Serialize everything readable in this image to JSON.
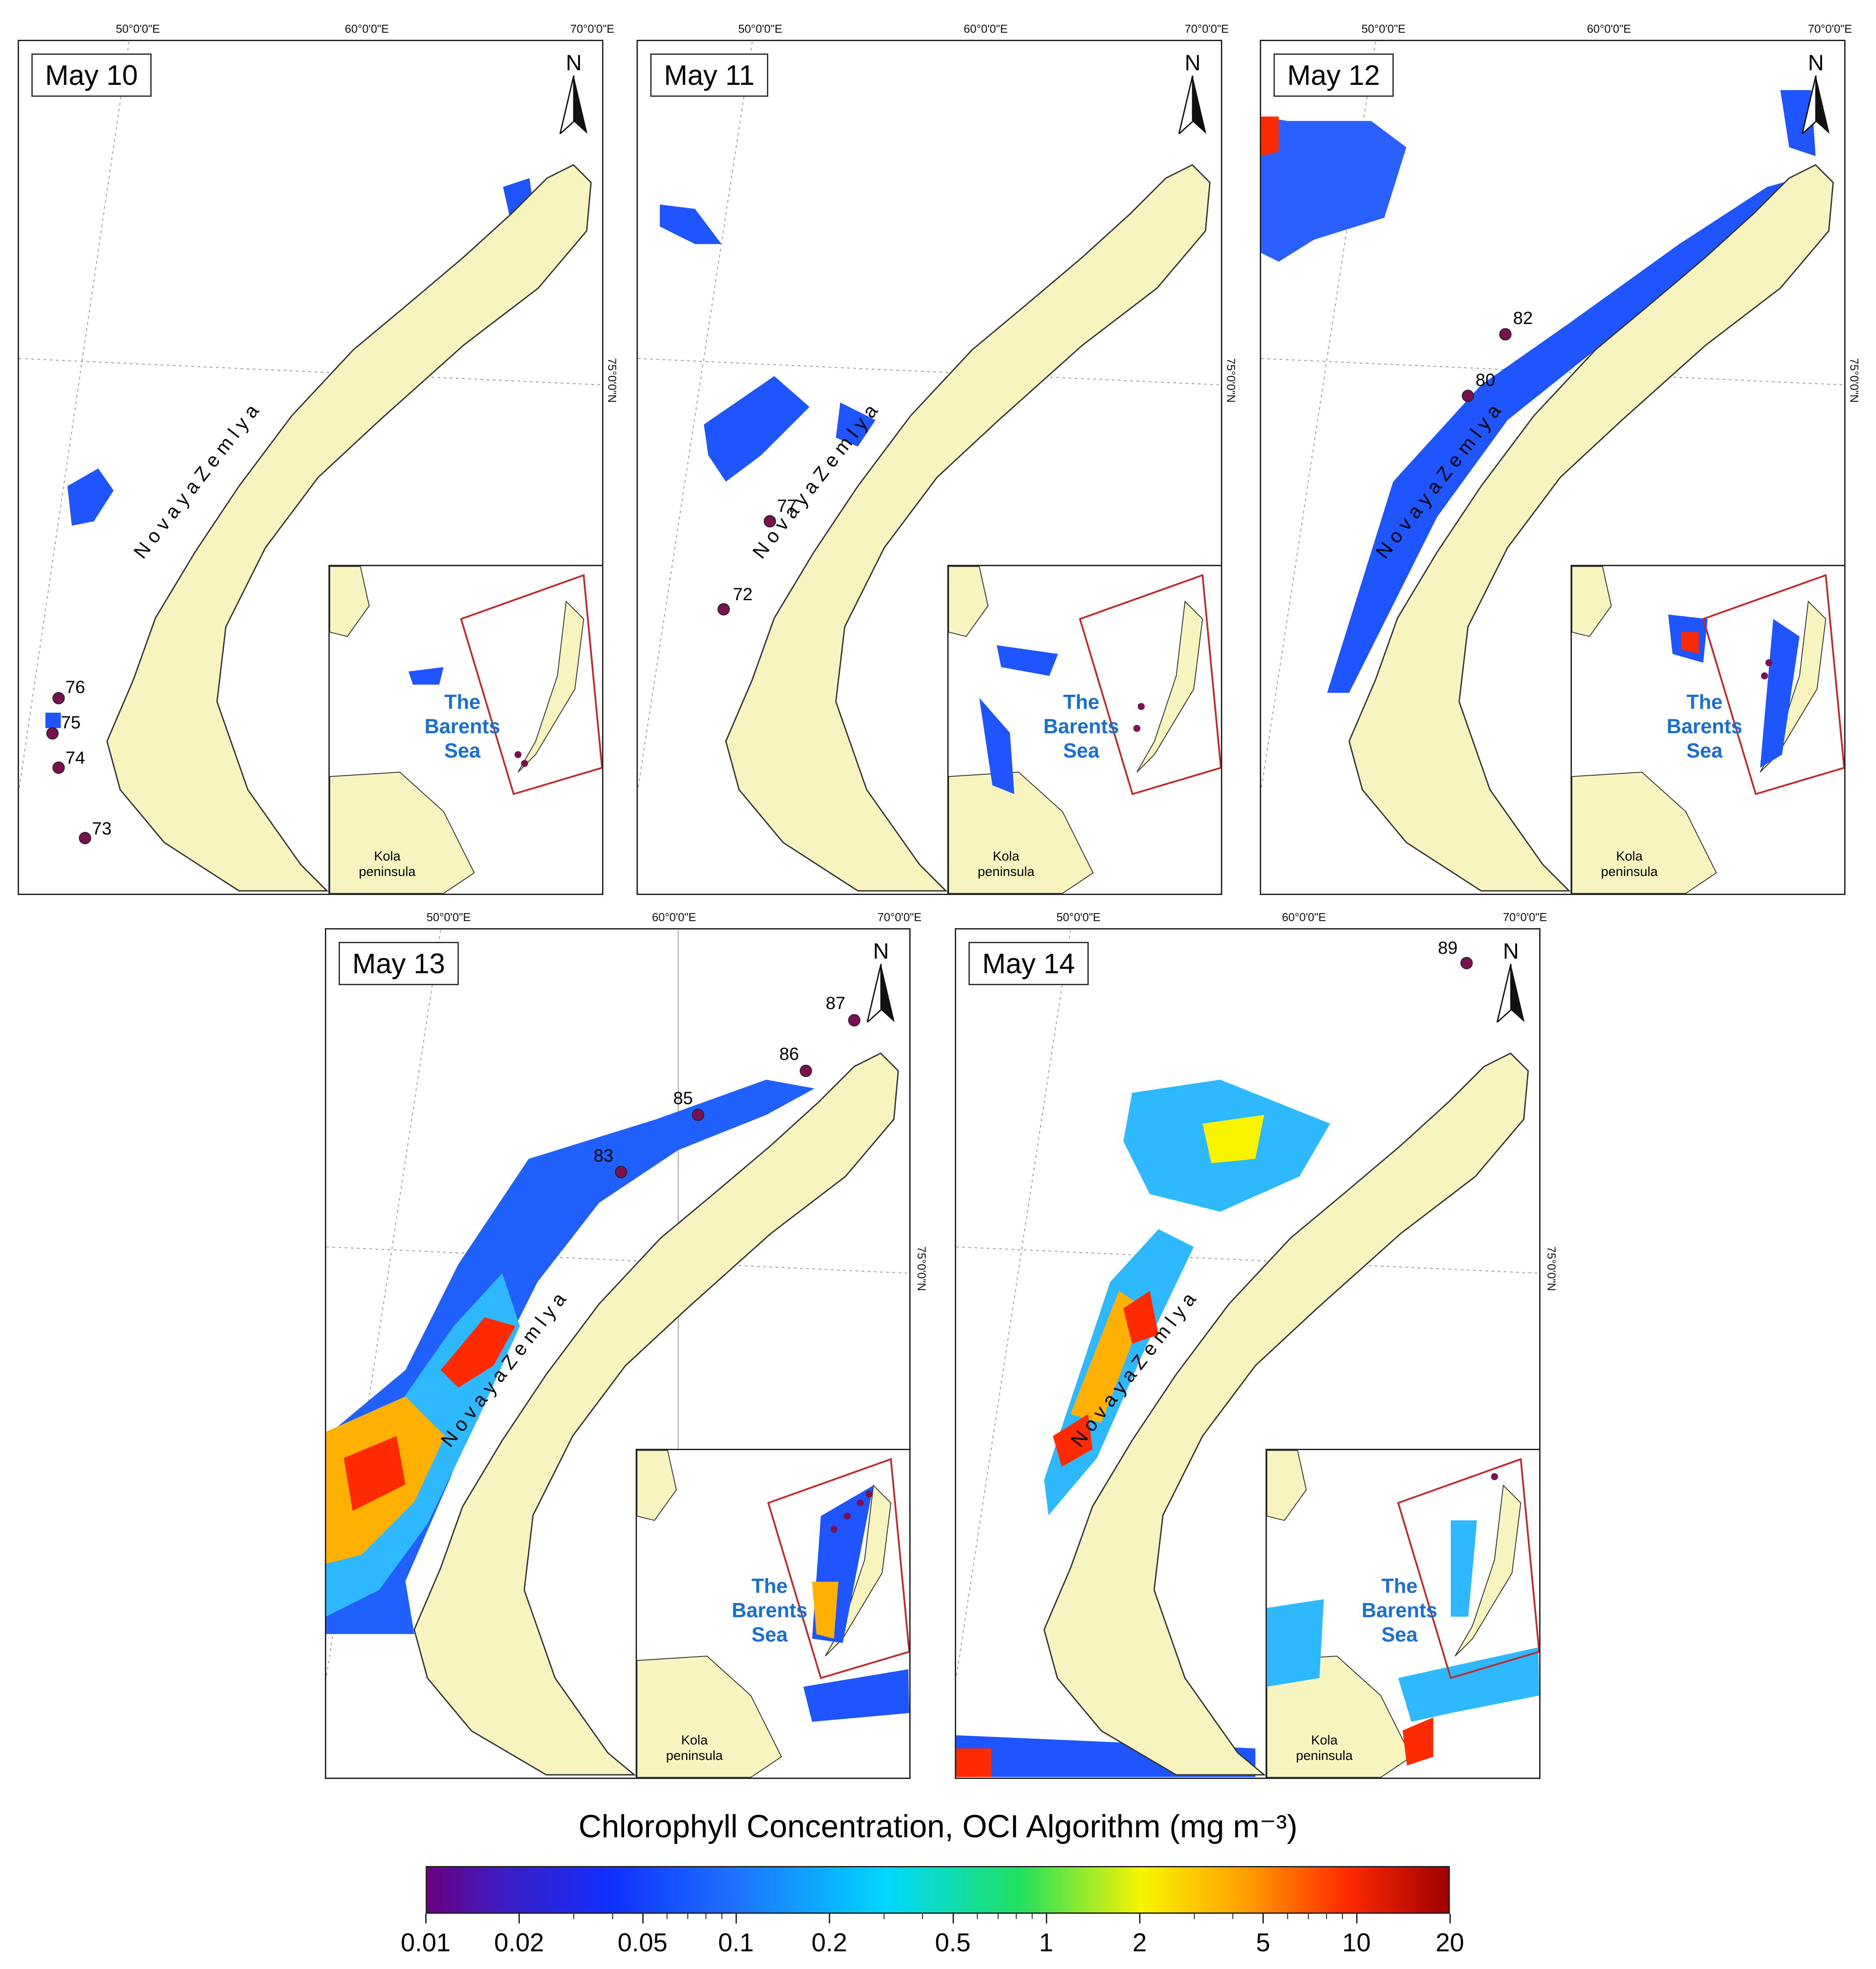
{
  "panels": [
    {
      "date": "May 10",
      "stations": [
        {
          "id": "76"
        },
        {
          "id": "75"
        },
        {
          "id": "74"
        },
        {
          "id": "73"
        }
      ]
    },
    {
      "date": "May 11",
      "stations": [
        {
          "id": "77"
        },
        {
          "id": "72"
        }
      ]
    },
    {
      "date": "May 12",
      "stations": [
        {
          "id": "82"
        },
        {
          "id": "80"
        }
      ]
    },
    {
      "date": "May 13",
      "stations": [
        {
          "id": "87"
        },
        {
          "id": "86"
        },
        {
          "id": "85"
        },
        {
          "id": "83"
        }
      ]
    },
    {
      "date": "May 14",
      "stations": [
        {
          "id": "89"
        }
      ]
    }
  ],
  "map_labels": {
    "island": "N o v a y a   Z e m l y a",
    "sea_line1": "The",
    "sea_line2": "Barents",
    "sea_line3": "Sea",
    "kola_line1": "Kola",
    "kola_line2": "peninsula",
    "north": "N",
    "lon_50": "50°0'0\"E",
    "lon_60": "60°0'0\"E",
    "lon_70": "70°0'0\"E",
    "lat_75": "75°0'0\"N"
  },
  "colorbar": {
    "title": "Chlorophyll Concentration, OCI Algorithm (mg m⁻³)",
    "scale": "log",
    "min": 0.01,
    "max": 20,
    "tick_labels": [
      "0.01",
      "0.02",
      "0.05",
      "0.1",
      "0.2",
      "0.5",
      "1",
      "2",
      "5",
      "10",
      "20"
    ]
  },
  "colors": {
    "land": "#f8f4c0",
    "station_marker": "#7a1050",
    "inset_frame": "#c0282c",
    "sea_label": "#1b6fd1"
  }
}
